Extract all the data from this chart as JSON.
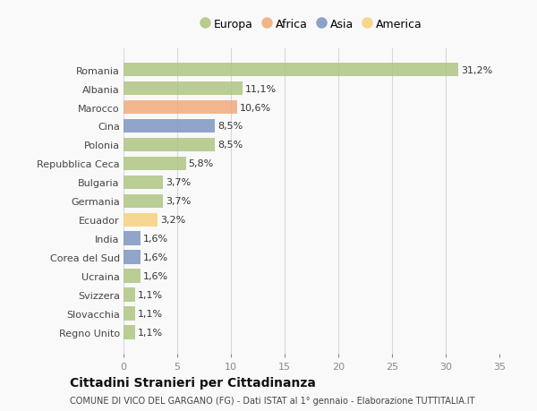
{
  "categories": [
    "Romania",
    "Albania",
    "Marocco",
    "Cina",
    "Polonia",
    "Repubblica Ceca",
    "Bulgaria",
    "Germania",
    "Ecuador",
    "India",
    "Corea del Sud",
    "Ucraina",
    "Svizzera",
    "Slovacchia",
    "Regno Unito"
  ],
  "values": [
    31.2,
    11.1,
    10.6,
    8.5,
    8.5,
    5.8,
    3.7,
    3.7,
    3.2,
    1.6,
    1.6,
    1.6,
    1.1,
    1.1,
    1.1
  ],
  "labels": [
    "31,2%",
    "11,1%",
    "10,6%",
    "8,5%",
    "8,5%",
    "5,8%",
    "3,7%",
    "3,7%",
    "3,2%",
    "1,6%",
    "1,6%",
    "1,6%",
    "1,1%",
    "1,1%",
    "1,1%"
  ],
  "colors": [
    "#adc47e",
    "#adc47e",
    "#f0a878",
    "#7a93c0",
    "#adc47e",
    "#adc47e",
    "#adc47e",
    "#adc47e",
    "#f5d07a",
    "#7a93c0",
    "#7a93c0",
    "#adc47e",
    "#adc47e",
    "#adc47e",
    "#adc47e"
  ],
  "legend_labels": [
    "Europa",
    "Africa",
    "Asia",
    "America"
  ],
  "legend_colors": [
    "#adc47e",
    "#f0a878",
    "#7a93c0",
    "#f5d07a"
  ],
  "title": "Cittadini Stranieri per Cittadinanza",
  "subtitle": "COMUNE DI VICO DEL GARGANO (FG) - Dati ISTAT al 1° gennaio - Elaborazione TUTTITALIA.IT",
  "xlim": [
    0,
    35
  ],
  "xticks": [
    0,
    5,
    10,
    15,
    20,
    25,
    30,
    35
  ],
  "background_color": "#f9f9f9",
  "grid_color": "#d8d8d8",
  "bar_height": 0.75,
  "label_fontsize": 8.0,
  "tick_fontsize": 8.0,
  "title_fontsize": 10,
  "subtitle_fontsize": 7.0
}
